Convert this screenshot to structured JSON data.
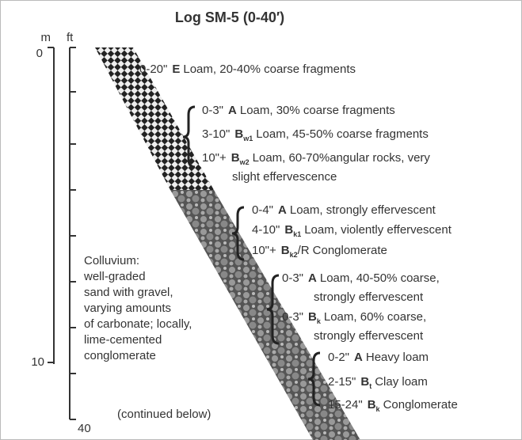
{
  "title": "Log SM-5 (0-40′)",
  "scale": {
    "m_label": "m",
    "ft_label": "ft",
    "top_label": "0",
    "m_label_10": "10",
    "ft_label_40": "40"
  },
  "top_entry": {
    "depth": "0-20\"",
    "horizon": {
      "letter": "E"
    },
    "lines": [
      "Loam, 20-40% coarse fragments"
    ]
  },
  "groups": [
    {
      "entries": [
        {
          "depth": "0-3\"",
          "horizon": {
            "letter": "A"
          },
          "lines": [
            "Loam, 30% coarse fragments"
          ]
        },
        {
          "depth": "3-10\"",
          "horizon": {
            "letter": "B",
            "sub": "w1"
          },
          "lines": [
            "Loam, 45-50% coarse fragments"
          ]
        },
        {
          "depth": "10\"+",
          "horizon": {
            "letter": "B",
            "sub": "w2"
          },
          "lines": [
            "Loam, 60-70%angular rocks, very",
            "slight effervescence"
          ]
        }
      ]
    },
    {
      "entries": [
        {
          "depth": "0-4\"",
          "horizon": {
            "letter": "A"
          },
          "lines": [
            "Loam, strongly effervescent"
          ]
        },
        {
          "depth": "4-10\"",
          "horizon": {
            "letter": "B",
            "sub": "k1"
          },
          "lines": [
            "Loam, violently effervescent"
          ]
        },
        {
          "depth": "10\"+",
          "horizon": {
            "letter": "B",
            "sub": "k2",
            "after": "/R"
          },
          "lines": [
            "Conglomerate"
          ]
        }
      ]
    },
    {
      "entries": [
        {
          "depth": "0-3\"",
          "horizon": {
            "letter": "A"
          },
          "lines": [
            "Loam, 40-50% coarse,",
            "strongly effervescent"
          ]
        },
        {
          "depth": "0-3\"",
          "horizon": {
            "letter": "B",
            "sub": "k"
          },
          "lines": [
            "Loam, 60% coarse,",
            "strongly effervescent"
          ]
        }
      ]
    },
    {
      "entries": [
        {
          "depth": "0-2\"",
          "horizon": {
            "letter": "A"
          },
          "lines": [
            "Heavy loam"
          ]
        },
        {
          "depth": "2-15\"",
          "horizon": {
            "letter": "B",
            "sub": "t"
          },
          "lines": [
            "Clay loam"
          ]
        },
        {
          "depth": "15-24\"",
          "horizon": {
            "letter": "B",
            "sub": "k"
          },
          "lines": [
            "Conglomerate"
          ]
        }
      ]
    }
  ],
  "colluvium": [
    "Colluvium:",
    "well-graded",
    "sand with gravel,",
    "varying amounts",
    "of carbonate; locally,",
    "lime-cemented",
    "conglomerate"
  ],
  "continued": "(continued below)"
}
